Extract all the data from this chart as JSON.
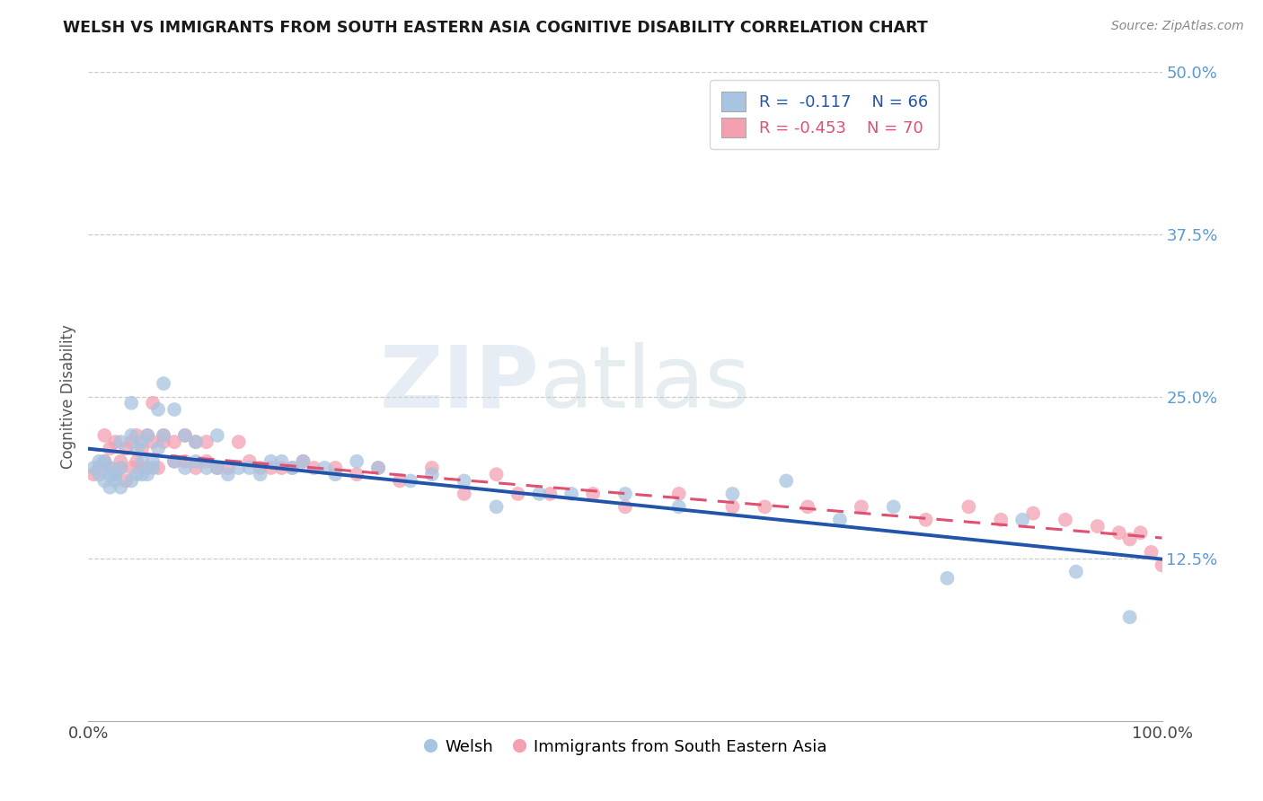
{
  "title": "WELSH VS IMMIGRANTS FROM SOUTH EASTERN ASIA COGNITIVE DISABILITY CORRELATION CHART",
  "source_text": "Source: ZipAtlas.com",
  "ylabel": "Cognitive Disability",
  "xlim": [
    0.0,
    1.0
  ],
  "ylim": [
    0.0,
    0.5
  ],
  "x_ticks": [
    0.0,
    0.25,
    0.5,
    0.75,
    1.0
  ],
  "x_tick_labels": [
    "0.0%",
    "",
    "",
    "",
    "100.0%"
  ],
  "y_ticks": [
    0.125,
    0.25,
    0.375,
    0.5
  ],
  "y_tick_labels": [
    "12.5%",
    "25.0%",
    "37.5%",
    "50.0%"
  ],
  "welsh_color": "#a8c4e0",
  "welsh_line_color": "#2255aa",
  "immigrant_color": "#f4a0b0",
  "immigrant_line_color": "#e05070",
  "legend_welsh_r": "R =  -0.117",
  "legend_welsh_n": "N = 66",
  "legend_immigrant_r": "R = -0.453",
  "legend_immigrant_n": "N = 70",
  "watermark_zip": "ZIP",
  "watermark_atlas": "atlas",
  "welsh_x": [
    0.005,
    0.01,
    0.01,
    0.015,
    0.015,
    0.02,
    0.02,
    0.02,
    0.025,
    0.025,
    0.03,
    0.03,
    0.03,
    0.04,
    0.04,
    0.04,
    0.045,
    0.045,
    0.05,
    0.05,
    0.05,
    0.055,
    0.055,
    0.06,
    0.06,
    0.065,
    0.065,
    0.07,
    0.07,
    0.08,
    0.08,
    0.09,
    0.09,
    0.1,
    0.1,
    0.11,
    0.12,
    0.12,
    0.13,
    0.14,
    0.15,
    0.16,
    0.17,
    0.18,
    0.19,
    0.2,
    0.22,
    0.23,
    0.25,
    0.27,
    0.3,
    0.32,
    0.35,
    0.38,
    0.42,
    0.45,
    0.5,
    0.55,
    0.6,
    0.65,
    0.7,
    0.75,
    0.8,
    0.87,
    0.92,
    0.97
  ],
  "welsh_y": [
    0.195,
    0.19,
    0.2,
    0.185,
    0.2,
    0.18,
    0.19,
    0.195,
    0.185,
    0.19,
    0.18,
    0.195,
    0.215,
    0.185,
    0.22,
    0.245,
    0.19,
    0.21,
    0.19,
    0.2,
    0.215,
    0.19,
    0.22,
    0.2,
    0.195,
    0.21,
    0.24,
    0.26,
    0.22,
    0.2,
    0.24,
    0.195,
    0.22,
    0.2,
    0.215,
    0.195,
    0.195,
    0.22,
    0.19,
    0.195,
    0.195,
    0.19,
    0.2,
    0.2,
    0.195,
    0.2,
    0.195,
    0.19,
    0.2,
    0.195,
    0.185,
    0.19,
    0.185,
    0.165,
    0.175,
    0.175,
    0.175,
    0.165,
    0.175,
    0.185,
    0.155,
    0.165,
    0.11,
    0.155,
    0.115,
    0.08
  ],
  "immigrant_x": [
    0.005,
    0.01,
    0.015,
    0.015,
    0.02,
    0.02,
    0.025,
    0.025,
    0.03,
    0.03,
    0.035,
    0.035,
    0.04,
    0.04,
    0.045,
    0.045,
    0.05,
    0.05,
    0.055,
    0.055,
    0.06,
    0.06,
    0.065,
    0.07,
    0.07,
    0.08,
    0.08,
    0.09,
    0.09,
    0.1,
    0.1,
    0.11,
    0.11,
    0.12,
    0.13,
    0.14,
    0.15,
    0.16,
    0.17,
    0.18,
    0.19,
    0.2,
    0.21,
    0.23,
    0.25,
    0.27,
    0.29,
    0.32,
    0.35,
    0.38,
    0.4,
    0.43,
    0.47,
    0.5,
    0.55,
    0.6,
    0.63,
    0.67,
    0.72,
    0.78,
    0.82,
    0.85,
    0.88,
    0.91,
    0.94,
    0.96,
    0.97,
    0.98,
    0.99,
    1.0
  ],
  "immigrant_y": [
    0.19,
    0.195,
    0.2,
    0.22,
    0.195,
    0.21,
    0.19,
    0.215,
    0.2,
    0.195,
    0.185,
    0.21,
    0.195,
    0.215,
    0.2,
    0.22,
    0.195,
    0.21,
    0.195,
    0.22,
    0.215,
    0.245,
    0.195,
    0.215,
    0.22,
    0.2,
    0.215,
    0.2,
    0.22,
    0.195,
    0.215,
    0.2,
    0.215,
    0.195,
    0.195,
    0.215,
    0.2,
    0.195,
    0.195,
    0.195,
    0.195,
    0.2,
    0.195,
    0.195,
    0.19,
    0.195,
    0.185,
    0.195,
    0.175,
    0.19,
    0.175,
    0.175,
    0.175,
    0.165,
    0.175,
    0.165,
    0.165,
    0.165,
    0.165,
    0.155,
    0.165,
    0.155,
    0.16,
    0.155,
    0.15,
    0.145,
    0.14,
    0.145,
    0.13,
    0.12
  ]
}
